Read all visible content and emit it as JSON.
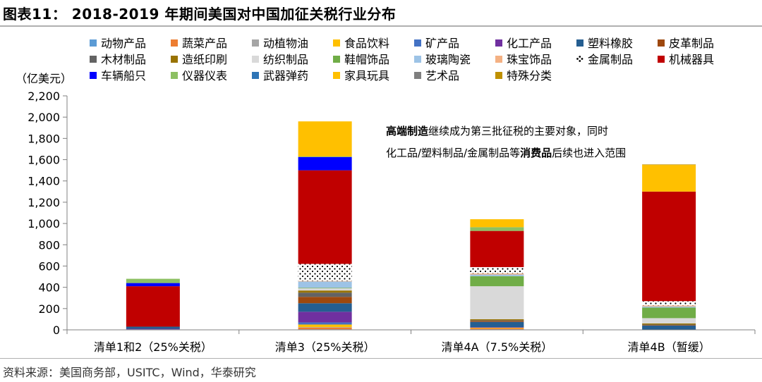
{
  "title": "图表11： 2018-2019 年期间美国对中国加征关税行业分布",
  "source": "资料来源：美国商务部，USITC，Wind，华泰研究",
  "chart_data": {
    "type": "bar",
    "stacked": true,
    "ylabel": "（亿美元）",
    "ylim": [
      0,
      2200
    ],
    "yticks": [
      0,
      200,
      400,
      600,
      800,
      1000,
      1200,
      1400,
      1600,
      1800,
      2000,
      2200
    ],
    "ytick_labels": [
      "0",
      "200",
      "400",
      "600",
      "800",
      "1,000",
      "1,200",
      "1,400",
      "1,600",
      "1,800",
      "2,000",
      "2,200"
    ],
    "categories": [
      "清单1和2（25%关税）",
      "清单3（25%关税）",
      "清单4A（7.5%关税）",
      "清单4B（暂缓）"
    ],
    "legend_position": "top",
    "series": [
      {
        "name": "动物产品",
        "color": "#5b9bd5",
        "values": [
          0,
          5,
          5,
          0
        ]
      },
      {
        "name": "蔬菜产品",
        "color": "#ed7d31",
        "values": [
          0,
          15,
          10,
          0
        ]
      },
      {
        "name": "动植物油",
        "color": "#a5a5a5",
        "values": [
          0,
          5,
          0,
          0
        ]
      },
      {
        "name": "食品饮料",
        "color": "#ffc000",
        "values": [
          0,
          25,
          5,
          0
        ]
      },
      {
        "name": "矿产品",
        "color": "#4472c4",
        "values": [
          5,
          20,
          0,
          0
        ]
      },
      {
        "name": "化工产品",
        "color": "#7030a0",
        "values": [
          5,
          100,
          5,
          0
        ]
      },
      {
        "name": "塑料橡胶",
        "color": "#255e91",
        "values": [
          20,
          80,
          50,
          40
        ]
      },
      {
        "name": "皮革制品",
        "color": "#9e480e",
        "values": [
          0,
          60,
          10,
          5
        ]
      },
      {
        "name": "木材制品",
        "color": "#636363",
        "values": [
          0,
          40,
          5,
          5
        ]
      },
      {
        "name": "造纸印刷",
        "color": "#997300",
        "values": [
          0,
          20,
          10,
          10
        ]
      },
      {
        "name": "纺织制品",
        "color": "#d9d9d9",
        "values": [
          0,
          20,
          310,
          50
        ]
      },
      {
        "name": "鞋帽饰品",
        "color": "#70ad47",
        "values": [
          0,
          5,
          95,
          100
        ]
      },
      {
        "name": "玻璃陶瓷",
        "color": "#9dc3e6",
        "values": [
          0,
          60,
          15,
          10
        ]
      },
      {
        "name": "珠宝饰品",
        "color": "#f4b183",
        "values": [
          0,
          5,
          10,
          10
        ]
      },
      {
        "name": "金属制品",
        "color": "#ffffff",
        "pattern": "dots",
        "values": [
          0,
          160,
          60,
          40
        ]
      },
      {
        "name": "机械器具",
        "color": "#c00000",
        "values": [
          380,
          880,
          340,
          1030
        ]
      },
      {
        "name": "车辆船只",
        "color": "#0000ff",
        "values": [
          30,
          125,
          0,
          0
        ]
      },
      {
        "name": "仪器仪表",
        "color": "#8dc063",
        "values": [
          40,
          5,
          35,
          0
        ]
      },
      {
        "name": "武器弹药",
        "color": "#2e75b6",
        "values": [
          0,
          0,
          0,
          0
        ]
      },
      {
        "name": "家具玩具",
        "color": "#ffc000",
        "values": [
          0,
          330,
          75,
          250
        ]
      },
      {
        "name": "艺术品",
        "color": "#7f7f7f",
        "values": [
          0,
          0,
          0,
          0
        ]
      },
      {
        "name": "特殊分类",
        "color": "#bf9000",
        "values": [
          0,
          0,
          0,
          5
        ]
      }
    ],
    "annotation": {
      "line1": [
        {
          "text": "高端制造",
          "bold": true
        },
        {
          "text": "继续成为第三批征税的主要对象，同时",
          "bold": false
        }
      ],
      "line2": [
        {
          "text": "化工品/塑料制品/金属制品等",
          "bold": false
        },
        {
          "text": "消费品",
          "bold": true
        },
        {
          "text": "后续也进入范围",
          "bold": false
        }
      ]
    }
  }
}
